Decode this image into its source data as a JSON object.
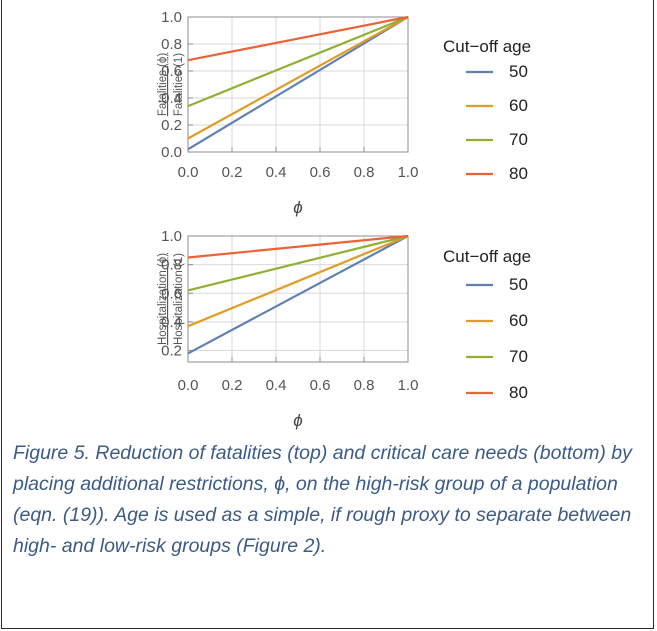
{
  "chart_data": [
    {
      "type": "line",
      "title": "",
      "xlabel": "ϕ",
      "ylabel_top": "Fatalities (ϕ)",
      "ylabel_bottom": "Fatalities (1)",
      "xlim": [
        0,
        1
      ],
      "ylim": [
        0,
        1
      ],
      "xticks": [
        "0.0",
        "0.2",
        "0.4",
        "0.6",
        "0.8",
        "1.0"
      ],
      "yticks": [
        "0.0",
        "0.2",
        "0.4",
        "0.6",
        "0.8",
        "1.0"
      ],
      "grid": true,
      "legend_title": "Cut−off age",
      "legend_position": "right",
      "series": [
        {
          "name": "50",
          "color": "#5e81b5",
          "x": [
            0,
            1
          ],
          "y": [
            0.02,
            1.0
          ]
        },
        {
          "name": "60",
          "color": "#e19c24",
          "x": [
            0,
            1
          ],
          "y": [
            0.1,
            1.0
          ]
        },
        {
          "name": "70",
          "color": "#8fb032",
          "x": [
            0,
            1
          ],
          "y": [
            0.34,
            1.0
          ]
        },
        {
          "name": "80",
          "color": "#eb6235",
          "x": [
            0,
            1
          ],
          "y": [
            0.68,
            1.0
          ]
        }
      ]
    },
    {
      "type": "line",
      "title": "",
      "xlabel": "ϕ",
      "ylabel_top": "Hospitalization (ϕ)",
      "ylabel_bottom": "Hospitalization (1)",
      "xlim": [
        0,
        1
      ],
      "ylim": [
        0.12,
        1
      ],
      "xticks": [
        "0.0",
        "0.2",
        "0.4",
        "0.6",
        "0.8",
        "1.0"
      ],
      "yticks": [
        "0.2",
        "0.4",
        "0.6",
        "0.8",
        "1.0"
      ],
      "grid": true,
      "legend_title": "Cut−off age",
      "legend_position": "right",
      "series": [
        {
          "name": "50",
          "color": "#5e81b5",
          "x": [
            0,
            1
          ],
          "y": [
            0.18,
            1.0
          ]
        },
        {
          "name": "60",
          "color": "#e19c24",
          "x": [
            0,
            1
          ],
          "y": [
            0.37,
            1.0
          ]
        },
        {
          "name": "70",
          "color": "#8fb032",
          "x": [
            0,
            1
          ],
          "y": [
            0.62,
            1.0
          ]
        },
        {
          "name": "80",
          "color": "#eb6235",
          "x": [
            0,
            1
          ],
          "y": [
            0.85,
            1.0
          ]
        }
      ]
    }
  ],
  "caption": "Figure 5.  Reduction of fatalities (top) and critical care needs (bottom) by placing additional restrictions, ϕ, on the high-risk group of a population (eqn. (19)).  Age is used as a simple, if rough proxy to separate between high- and low-risk groups (Figure 2)."
}
